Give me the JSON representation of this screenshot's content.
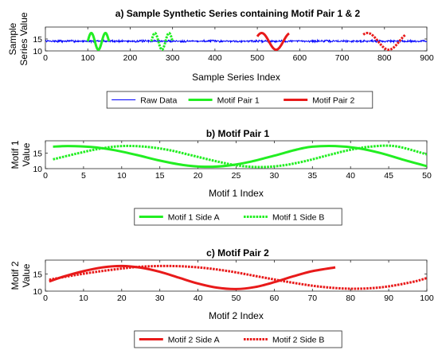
{
  "chart_data": [
    {
      "type": "line",
      "title": "a) Sample Synthetic Series containing Motif Pair 1 & 2",
      "xlabel": "Sample Series Index",
      "ylabel_lines": [
        "Sample",
        "Series Value"
      ],
      "xlim": [
        0,
        900
      ],
      "ylim": [
        10,
        20
      ],
      "xticks": [
        0,
        100,
        200,
        300,
        400,
        500,
        600,
        700,
        800,
        900
      ],
      "yticks": [
        10,
        15
      ],
      "legend": [
        "Raw Data",
        "Motif Pair 1",
        "Motif Pair 2"
      ],
      "series": [
        {
          "name": "Raw Data",
          "color": "#0000ff",
          "style": "solid",
          "baseline": 14.1,
          "noise": 0.35,
          "x_range": [
            0,
            900
          ]
        },
        {
          "name": "Motif Pair 1",
          "color": "#22ee22",
          "style": "solid",
          "segments": [
            [
              100,
              150
            ]
          ],
          "shape": {
            "center": 14,
            "amplitude": 3.5,
            "periods": 1.5
          }
        },
        {
          "name": "Motif Pair 1",
          "color": "#22ee22",
          "style": "dotted",
          "segments": [
            [
              250,
              300
            ]
          ],
          "shape": {
            "center": 14,
            "amplitude": 3.5,
            "periods": 1.5
          }
        },
        {
          "name": "Motif Pair 2",
          "color": "#e81a1a",
          "style": "solid",
          "segments": [
            [
              500,
              575
            ]
          ],
          "shape": {
            "center": 14,
            "amplitude": 3.5,
            "periods": 1.1,
            "phase": 0.1
          }
        },
        {
          "name": "Motif Pair 2",
          "color": "#e81a1a",
          "style": "dotted",
          "segments": [
            [
              750,
              850
            ]
          ],
          "shape": {
            "center": 14,
            "amplitude": 3.5,
            "periods": 1.0,
            "phase": 0.15
          }
        }
      ]
    },
    {
      "type": "line",
      "title": "b) Motif Pair 1",
      "xlabel": "Motif 1 Index",
      "ylabel_lines": [
        "Motif 1",
        "Value"
      ],
      "xlim": [
        0,
        50
      ],
      "ylim": [
        10,
        19
      ],
      "xticks": [
        0,
        5,
        10,
        15,
        20,
        25,
        30,
        35,
        40,
        45,
        50
      ],
      "yticks": [
        10,
        15
      ],
      "legend": [
        "Motif 1 Side A",
        "Motif 1 Side B"
      ],
      "series": [
        {
          "name": "Motif 1 Side A",
          "color": "#22ee22",
          "style": "solid",
          "x": [
            1,
            3,
            6,
            9,
            12,
            15,
            18,
            21,
            24,
            27,
            30,
            33,
            35,
            38,
            41,
            44,
            47,
            50
          ],
          "values": [
            17.1,
            17.3,
            17.0,
            16.0,
            14.4,
            12.6,
            11.2,
            10.6,
            11.0,
            12.3,
            14.2,
            16.2,
            17.1,
            17.3,
            16.6,
            15.0,
            12.8,
            10.8
          ]
        },
        {
          "name": "Motif 1 Side B",
          "color": "#22ee22",
          "style": "dotted",
          "x": [
            1,
            4,
            7,
            10,
            13,
            16,
            19,
            22,
            25,
            28,
            31,
            34,
            37,
            40,
            43,
            46,
            50
          ],
          "values": [
            13.0,
            14.8,
            16.4,
            17.3,
            17.1,
            16.1,
            14.4,
            12.6,
            11.1,
            10.5,
            11.0,
            12.4,
            14.3,
            16.1,
            17.2,
            17.2,
            14.6
          ]
        }
      ]
    },
    {
      "type": "line",
      "title": "c) Motif Pair 2",
      "xlabel": "Motif 2 Index",
      "ylabel_lines": [
        "Motif 2",
        "Value"
      ],
      "xlim": [
        0,
        100
      ],
      "ylim": [
        10,
        19
      ],
      "xticks": [
        0,
        10,
        20,
        30,
        40,
        50,
        60,
        70,
        80,
        90,
        100
      ],
      "yticks": [
        10,
        15
      ],
      "legend": [
        "Motif 2 Side A",
        "Motif 2 Side B"
      ],
      "series": [
        {
          "name": "Motif 2 Side A",
          "color": "#e81a1a",
          "style": "solid",
          "x": [
            1,
            5,
            10,
            15,
            20,
            25,
            30,
            35,
            40,
            45,
            50,
            55,
            60,
            65,
            70,
            76
          ],
          "values": [
            12.8,
            14.3,
            15.8,
            16.9,
            17.3,
            16.8,
            15.6,
            13.9,
            12.2,
            11.0,
            10.6,
            11.2,
            12.6,
            14.3,
            15.8,
            16.9
          ]
        },
        {
          "name": "Motif 2 Side B",
          "color": "#e81a1a",
          "style": "dotted",
          "x": [
            1,
            8,
            16,
            24,
            32,
            40,
            48,
            56,
            64,
            72,
            80,
            88,
            96,
            100
          ],
          "values": [
            13.3,
            14.7,
            16.0,
            17.0,
            17.3,
            16.9,
            15.8,
            14.2,
            12.6,
            11.3,
            10.7,
            11.1,
            12.6,
            13.8
          ]
        }
      ]
    }
  ]
}
